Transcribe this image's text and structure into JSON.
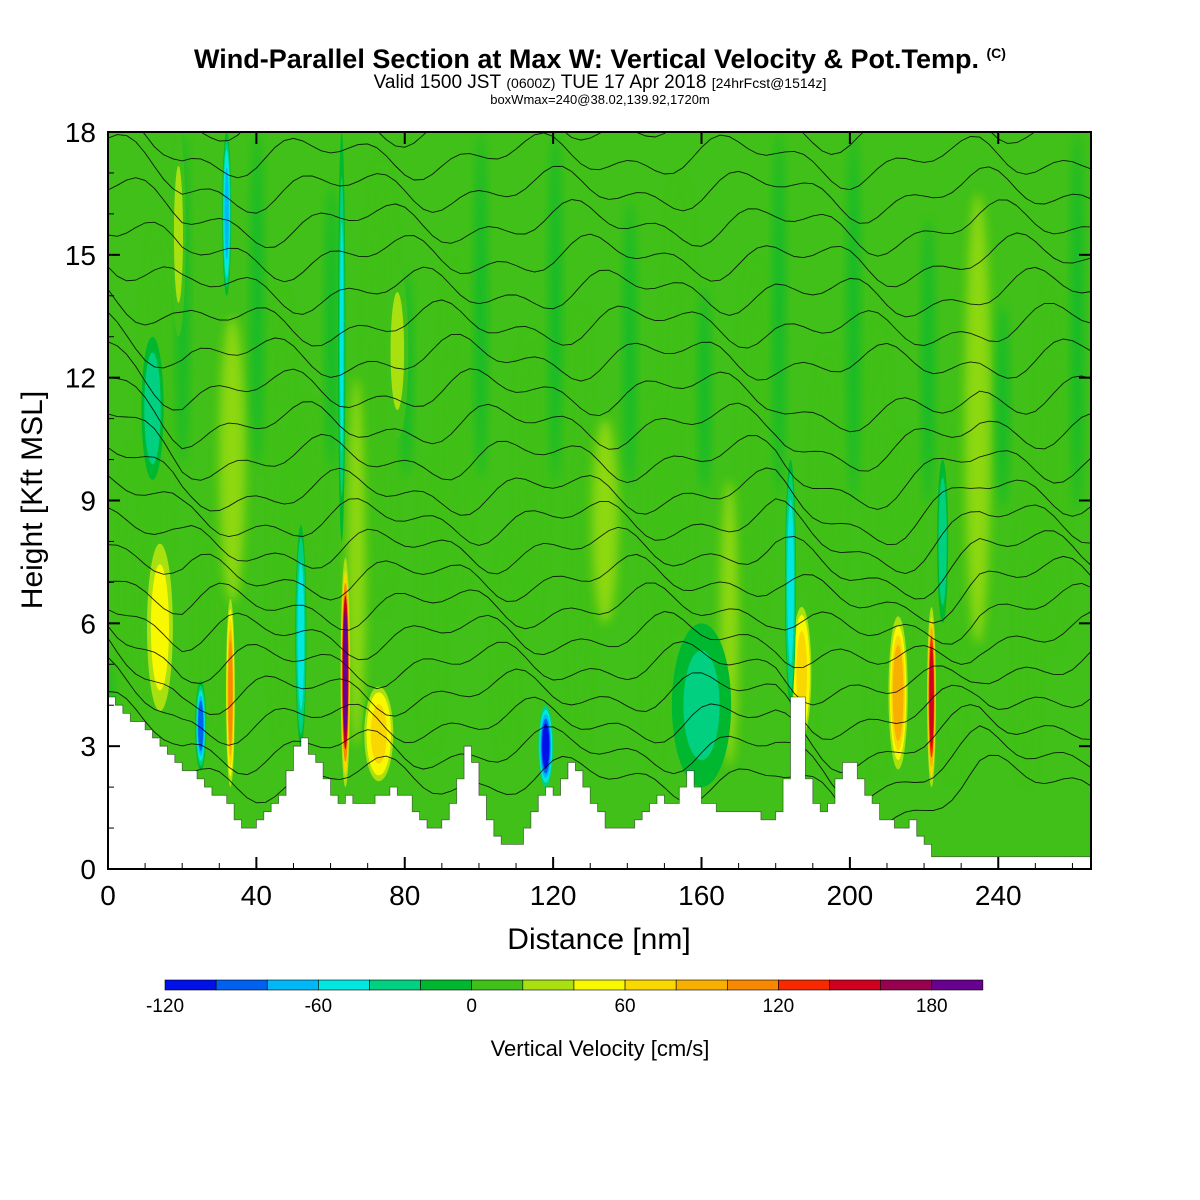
{
  "header": {
    "title": "Wind-Parallel Section at Max W: Vertical Velocity & Pot.Temp.",
    "copyright": "(C)",
    "valid_prefix": "Valid 1500 JST",
    "valid_utc": "(0600Z)",
    "valid_date": "TUE 17 Apr 2018",
    "forecast": "[24hrFcst@1514z]",
    "box_info": "boxWmax=240@38.02,139.92,1720m"
  },
  "chart_data": {
    "type": "heatmap",
    "xlabel": "Distance [nm]",
    "ylabel": "Height [Kft MSL]",
    "xlim": [
      0,
      265
    ],
    "ylim": [
      0,
      18
    ],
    "x_ticks": [
      0,
      40,
      80,
      120,
      160,
      200,
      240
    ],
    "y_ticks": [
      0,
      3,
      6,
      9,
      12,
      15,
      18
    ],
    "colorbar": {
      "label": "Vertical Velocity [cm/s]",
      "tick_labels": [
        -120,
        -60,
        0,
        60,
        120,
        180
      ],
      "bounds": [
        -120,
        -100,
        -80,
        -60,
        -40,
        -20,
        0,
        20,
        40,
        60,
        80,
        100,
        120,
        140,
        160,
        180,
        200,
        220
      ],
      "colors": [
        "#0010e8",
        "#0060f0",
        "#00b8f8",
        "#00e8e0",
        "#00d080",
        "#00b830",
        "#40c018",
        "#a8e010",
        "#f8f800",
        "#f8d800",
        "#f8b000",
        "#f88800",
        "#f82800",
        "#d00020",
        "#980050",
        "#680090"
      ]
    },
    "background_value": 0,
    "updrafts": [
      {
        "x": 14,
        "zmin": 3.6,
        "zmax": 8.2,
        "w": 4,
        "value": 58
      },
      {
        "x": 33,
        "zmin": 2.0,
        "zmax": 6.6,
        "w": 1.2,
        "value": 115
      },
      {
        "x": 64,
        "zmin": 2.0,
        "zmax": 7.6,
        "w": 1.3,
        "value": 190
      },
      {
        "x": 73,
        "zmin": 2.0,
        "zmax": 4.6,
        "w": 4.5,
        "value": 70
      },
      {
        "x": 78,
        "zmin": 10.5,
        "zmax": 14.8,
        "w": 3,
        "value": 30
      },
      {
        "x": 187,
        "zmin": 3.0,
        "zmax": 6.6,
        "w": 3,
        "value": 70
      },
      {
        "x": 213,
        "zmin": 2.2,
        "zmax": 6.4,
        "w": 3,
        "value": 80
      },
      {
        "x": 222,
        "zmin": 2.0,
        "zmax": 6.4,
        "w": 1.2,
        "value": 150
      },
      {
        "x": 19,
        "zmin": 13.0,
        "zmax": 18.0,
        "w": 2,
        "value": 30
      },
      {
        "x": 118,
        "zmin": 2.0,
        "zmax": 4.0,
        "w": 2,
        "value": -120
      },
      {
        "x": 25,
        "zmin": 2.4,
        "zmax": 4.6,
        "w": 1.5,
        "value": -90
      },
      {
        "x": 32,
        "zmin": 14.0,
        "zmax": 18.0,
        "w": 1.2,
        "value": -70
      },
      {
        "x": 52,
        "zmin": 3.0,
        "zmax": 8.4,
        "w": 1.5,
        "value": -60
      },
      {
        "x": 63,
        "zmin": 8.0,
        "zmax": 18.0,
        "w": 1.0,
        "value": -50
      },
      {
        "x": 184,
        "zmin": 4.0,
        "zmax": 10.0,
        "w": 1.5,
        "value": -60
      },
      {
        "x": 160,
        "zmin": 2.0,
        "zmax": 6.0,
        "w": 8,
        "value": -30
      },
      {
        "x": 12,
        "zmin": 9.5,
        "zmax": 13.0,
        "w": 3,
        "value": -35
      },
      {
        "x": 225,
        "zmin": 6.0,
        "zmax": 10.0,
        "w": 1.5,
        "value": -35
      }
    ],
    "terrain_kft": [
      [
        0,
        4.2
      ],
      [
        2,
        4.0
      ],
      [
        4,
        3.8
      ],
      [
        6,
        3.6
      ],
      [
        10,
        3.4
      ],
      [
        12,
        3.2
      ],
      [
        14,
        3.0
      ],
      [
        16,
        2.8
      ],
      [
        18,
        2.6
      ],
      [
        20,
        2.4
      ],
      [
        24,
        2.2
      ],
      [
        26,
        2.0
      ],
      [
        28,
        1.8
      ],
      [
        32,
        1.6
      ],
      [
        34,
        1.2
      ],
      [
        36,
        1.0
      ],
      [
        38,
        1.0
      ],
      [
        40,
        1.2
      ],
      [
        42,
        1.4
      ],
      [
        44,
        1.6
      ],
      [
        46,
        1.8
      ],
      [
        48,
        2.4
      ],
      [
        50,
        3.0
      ],
      [
        52,
        3.2
      ],
      [
        54,
        2.8
      ],
      [
        56,
        2.6
      ],
      [
        58,
        2.2
      ],
      [
        60,
        1.8
      ],
      [
        62,
        1.6
      ],
      [
        64,
        1.8
      ],
      [
        66,
        1.6
      ],
      [
        70,
        1.6
      ],
      [
        72,
        1.8
      ],
      [
        76,
        2.0
      ],
      [
        78,
        1.8
      ],
      [
        82,
        1.4
      ],
      [
        84,
        1.2
      ],
      [
        86,
        1.0
      ],
      [
        88,
        1.0
      ],
      [
        90,
        1.2
      ],
      [
        92,
        1.6
      ],
      [
        94,
        2.2
      ],
      [
        96,
        3.0
      ],
      [
        98,
        2.6
      ],
      [
        100,
        1.8
      ],
      [
        102,
        1.2
      ],
      [
        104,
        0.8
      ],
      [
        106,
        0.6
      ],
      [
        110,
        0.6
      ],
      [
        112,
        1.0
      ],
      [
        114,
        1.4
      ],
      [
        116,
        1.8
      ],
      [
        118,
        2.0
      ],
      [
        120,
        1.8
      ],
      [
        122,
        2.2
      ],
      [
        124,
        2.6
      ],
      [
        126,
        2.4
      ],
      [
        128,
        2.0
      ],
      [
        130,
        1.6
      ],
      [
        132,
        1.4
      ],
      [
        134,
        1.0
      ],
      [
        136,
        1.0
      ],
      [
        140,
        1.0
      ],
      [
        142,
        1.2
      ],
      [
        144,
        1.4
      ],
      [
        146,
        1.6
      ],
      [
        148,
        1.8
      ],
      [
        150,
        1.6
      ],
      [
        152,
        1.6
      ],
      [
        154,
        2.0
      ],
      [
        156,
        2.4
      ],
      [
        158,
        2.0
      ],
      [
        160,
        1.6
      ],
      [
        164,
        1.4
      ],
      [
        168,
        1.4
      ],
      [
        172,
        1.4
      ],
      [
        176,
        1.2
      ],
      [
        180,
        1.4
      ],
      [
        182,
        2.2
      ],
      [
        184,
        4.2
      ],
      [
        186,
        4.2
      ],
      [
        188,
        2.2
      ],
      [
        190,
        1.6
      ],
      [
        192,
        1.4
      ],
      [
        194,
        1.6
      ],
      [
        196,
        2.2
      ],
      [
        198,
        2.6
      ],
      [
        200,
        2.6
      ],
      [
        202,
        2.2
      ],
      [
        204,
        1.8
      ],
      [
        206,
        1.6
      ],
      [
        208,
        1.2
      ],
      [
        212,
        1.0
      ],
      [
        214,
        1.0
      ],
      [
        216,
        1.2
      ],
      [
        218,
        0.8
      ],
      [
        220,
        0.6
      ],
      [
        222,
        0.3
      ],
      [
        230,
        0.3
      ],
      [
        240,
        0.3
      ],
      [
        250,
        0.3
      ],
      [
        260,
        0.3
      ],
      [
        265,
        0.3
      ]
    ],
    "contours": "potential temperature isentropes (unlabeled)"
  }
}
